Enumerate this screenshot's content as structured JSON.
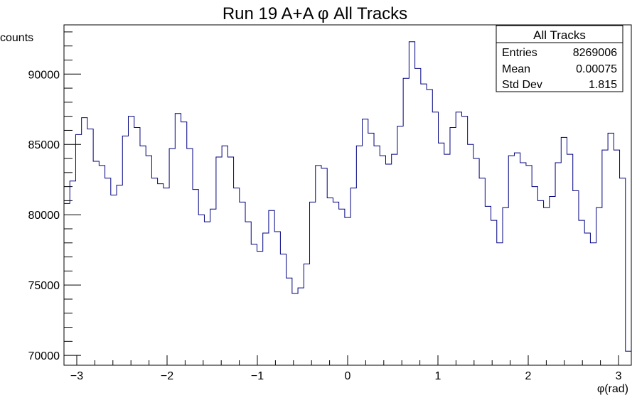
{
  "chart_data": {
    "type": "histogram",
    "title": "Run 19 A+A  φ All Tracks",
    "xlabel": "φ(rad)",
    "ylabel": "counts",
    "xlim": [
      -3.1416,
      3.1416
    ],
    "ylim": [
      69300,
      93500
    ],
    "x_ticks": [
      -3,
      -2,
      -1,
      0,
      1,
      2,
      3
    ],
    "x_tick_labels": [
      "−3",
      "−2",
      "−1",
      "0",
      "1",
      "2",
      "3"
    ],
    "y_ticks": [
      70000,
      75000,
      80000,
      85000,
      90000
    ],
    "y_tick_labels": [
      "70000",
      "75000",
      "80000",
      "85000",
      "90000"
    ],
    "line_color": "#000080",
    "bin_values": [
      80800,
      82400,
      85700,
      86900,
      86100,
      83800,
      83500,
      82600,
      81400,
      82100,
      85600,
      87000,
      86200,
      84900,
      84200,
      82600,
      82200,
      81900,
      84700,
      87200,
      86600,
      84700,
      81800,
      80000,
      79500,
      80400,
      84100,
      84900,
      84100,
      81900,
      80900,
      79500,
      77900,
      77400,
      78700,
      80300,
      78800,
      77200,
      75500,
      74400,
      74800,
      76500,
      80900,
      83500,
      83300,
      81200,
      80900,
      80400,
      79800,
      81900,
      84900,
      86800,
      85800,
      84900,
      84200,
      83600,
      84300,
      86300,
      89700,
      92300,
      90400,
      89300,
      88900,
      87300,
      85100,
      84300,
      86200,
      87300,
      87000,
      85000,
      84000,
      82600,
      80600,
      79600,
      78000,
      80500,
      84200,
      84400,
      83700,
      83500,
      82000,
      81000,
      80500,
      81300,
      83700,
      85500,
      84300,
      81700,
      79600,
      78700,
      78000,
      80500,
      84600,
      85800,
      84600,
      82600,
      70300
    ],
    "stats": {
      "title": "All Tracks",
      "rows": [
        {
          "label": "Entries",
          "value": "8269006"
        },
        {
          "label": "Mean",
          "value": "0.00075"
        },
        {
          "label": "Std Dev",
          "value": "1.815"
        }
      ]
    }
  }
}
